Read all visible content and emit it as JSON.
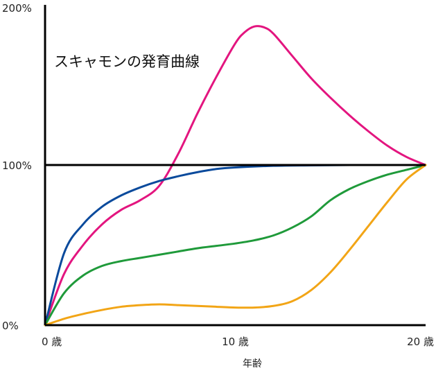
{
  "chart_data": {
    "type": "line",
    "title": "スキャモンの発育曲線",
    "xlabel": "年齢",
    "ylabel": "",
    "xlim": [
      0,
      20
    ],
    "ylim": [
      0,
      200
    ],
    "x_ticks": [
      {
        "value": 0,
        "label": "0 歳"
      },
      {
        "value": 10,
        "label": "10 歳"
      },
      {
        "value": 20,
        "label": "20 歳"
      }
    ],
    "y_ticks": [
      {
        "value": 0,
        "label": "0%"
      },
      {
        "value": 100,
        "label": "100%"
      },
      {
        "value": 200,
        "label": "200%"
      }
    ],
    "reference_line": {
      "y": 100,
      "color": "#000000"
    },
    "grid": false,
    "legend": "none",
    "series": [
      {
        "color": "#e3157f",
        "x": [
          0,
          1,
          2,
          3,
          4,
          5,
          6,
          7,
          8,
          9,
          10,
          10.5,
          11,
          11.5,
          12,
          13,
          14,
          15,
          16,
          17,
          18,
          19,
          20
        ],
        "y": [
          0,
          32,
          50,
          63,
          72,
          78,
          87,
          107,
          132,
          155,
          176,
          183,
          186.5,
          186,
          182,
          168,
          154,
          142,
          131,
          121,
          112,
          105,
          100
        ]
      },
      {
        "color": "#0a4a9c",
        "x": [
          0,
          1,
          2,
          3,
          4,
          5,
          6,
          7,
          8,
          9,
          10,
          12,
          14,
          16,
          18,
          20
        ],
        "y": [
          0,
          45,
          63,
          74,
          81,
          86,
          90,
          93,
          95.5,
          97.5,
          98.5,
          99.5,
          99.8,
          100,
          100,
          100
        ]
      },
      {
        "color": "#1f9a3a",
        "x": [
          0,
          1,
          2,
          3,
          4,
          5,
          6,
          7,
          8,
          9,
          10,
          11,
          12,
          13,
          14,
          15,
          16,
          17,
          18,
          19,
          20
        ],
        "y": [
          0,
          20,
          31,
          37,
          40,
          42,
          44,
          46,
          48,
          49.5,
          51,
          53,
          56,
          61,
          68,
          78,
          85,
          90,
          94,
          97,
          100
        ]
      },
      {
        "color": "#f2a516",
        "x": [
          0,
          1,
          2,
          3,
          4,
          5,
          6,
          7,
          8,
          9,
          10,
          11,
          12,
          13,
          14,
          15,
          16,
          17,
          18,
          19,
          20
        ],
        "y": [
          0,
          4,
          7,
          9.5,
          11.5,
          12.5,
          13,
          12.5,
          12,
          11.5,
          11,
          11,
          12,
          15,
          22,
          33,
          47,
          62,
          77,
          91,
          100
        ]
      }
    ]
  }
}
